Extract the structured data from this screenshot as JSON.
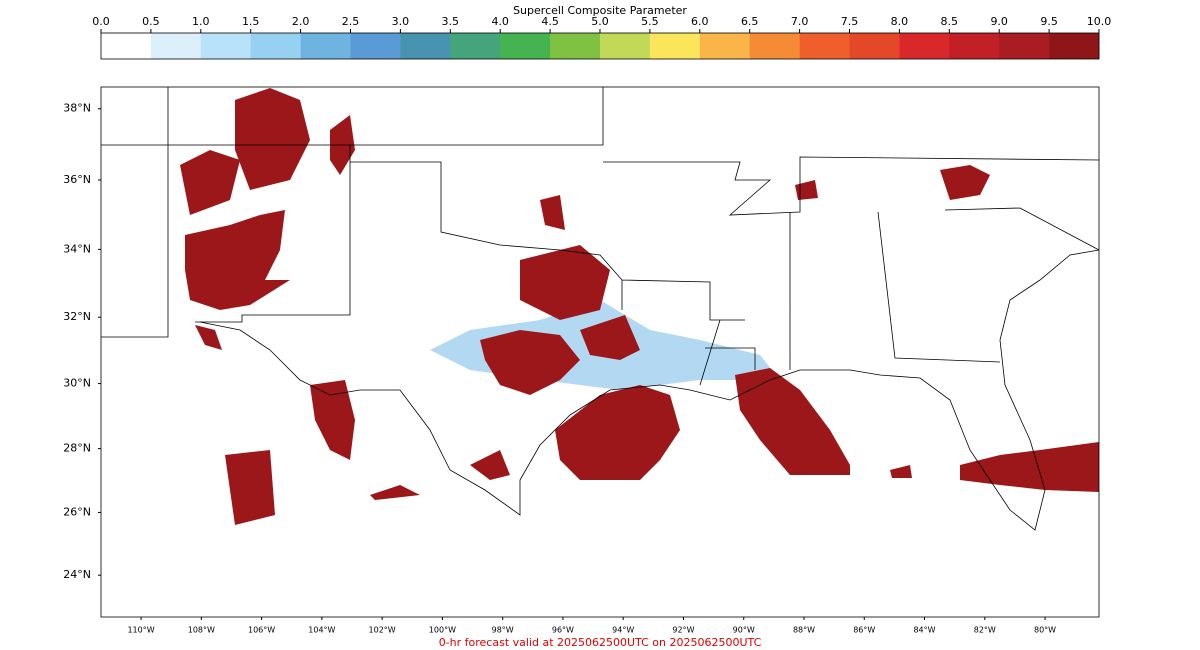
{
  "colorbar": {
    "title": "Supercell Composite Parameter",
    "range": [
      0,
      10
    ],
    "ticks": [
      {
        "value": 0,
        "label": "0.0"
      },
      {
        "value": 0.5,
        "label": "0.5"
      },
      {
        "value": 1,
        "label": "1.0"
      },
      {
        "value": 1.5,
        "label": "1.5"
      },
      {
        "value": 2,
        "label": "2.0"
      },
      {
        "value": 2.5,
        "label": "2.5"
      },
      {
        "value": 3,
        "label": "3.0"
      },
      {
        "value": 3.5,
        "label": "3.5"
      },
      {
        "value": 4,
        "label": "4.0"
      },
      {
        "value": 4.5,
        "label": "4.5"
      },
      {
        "value": 5,
        "label": "5.0"
      },
      {
        "value": 5.5,
        "label": "5.5"
      },
      {
        "value": 6,
        "label": "6.0"
      },
      {
        "value": 6.5,
        "label": "6.5"
      },
      {
        "value": 7,
        "label": "7.0"
      },
      {
        "value": 7.5,
        "label": "7.5"
      },
      {
        "value": 8,
        "label": "8.0"
      },
      {
        "value": 8.5,
        "label": "8.5"
      },
      {
        "value": 9,
        "label": "9.0"
      },
      {
        "value": 9.5,
        "label": "9.5"
      },
      {
        "value": 10,
        "label": "10.0"
      }
    ],
    "colors": [
      "#ffffff",
      "#dcf0fb",
      "#b8e2f7",
      "#96d1f2",
      "#6fb3e0",
      "#5b9bd5",
      "#4793b0",
      "#44a57c",
      "#45b450",
      "#7fc242",
      "#c2d957",
      "#fbe55a",
      "#f9b548",
      "#f68b36",
      "#f05e2b",
      "#e54729",
      "#d9282a",
      "#c21f27",
      "#a91c22",
      "#8e1619"
    ]
  },
  "map": {
    "xlim": [
      -111.33,
      -78.21
    ],
    "ylim": [
      22.65,
      38.6
    ],
    "lat_ticks": [
      {
        "value": 24,
        "label": "24°N"
      },
      {
        "value": 26,
        "label": "26°N"
      },
      {
        "value": 28,
        "label": "28°N"
      },
      {
        "value": 30,
        "label": "30°N"
      },
      {
        "value": 32,
        "label": "32°N"
      },
      {
        "value": 34,
        "label": "34°N"
      },
      {
        "value": 36,
        "label": "36°N"
      },
      {
        "value": 38,
        "label": "38°N"
      }
    ],
    "lon_ticks": [
      {
        "value": -110,
        "label": "110°W"
      },
      {
        "value": -108,
        "label": "108°W"
      },
      {
        "value": -106,
        "label": "106°W"
      },
      {
        "value": -104,
        "label": "104°W"
      },
      {
        "value": -102,
        "label": "102°W"
      },
      {
        "value": -100,
        "label": "100°W"
      },
      {
        "value": -98,
        "label": "98°W"
      },
      {
        "value": -96,
        "label": "96°W"
      },
      {
        "value": -94,
        "label": "94°W"
      },
      {
        "value": -92,
        "label": "92°W"
      },
      {
        "value": -90,
        "label": "90°W"
      },
      {
        "value": -88,
        "label": "88°W"
      },
      {
        "value": -86,
        "label": "86°W"
      },
      {
        "value": -84,
        "label": "84°W"
      },
      {
        "value": -82,
        "label": "82°W"
      },
      {
        "value": -80,
        "label": "80°W"
      }
    ]
  },
  "footer": "0-hr forecast valid at 2025062500UTC on 2025062500UTC"
}
